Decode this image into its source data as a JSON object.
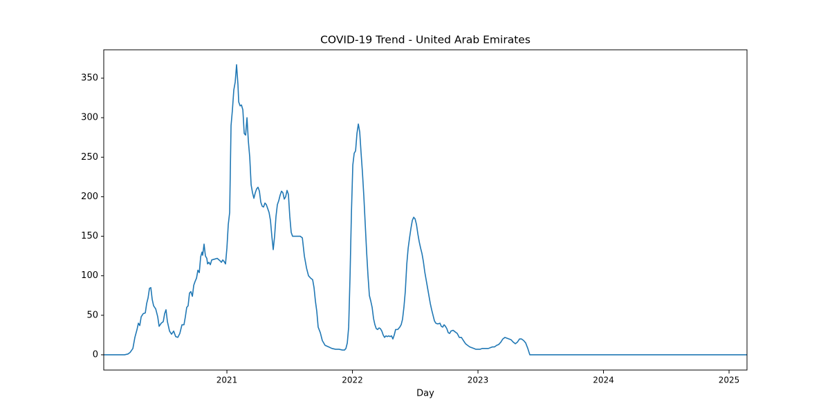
{
  "chart_data": {
    "type": "line",
    "title": "COVID-19 Trend - United Arab Emirates",
    "xlabel": "Day",
    "x": [
      2020.019,
      2020.185,
      2020.212,
      2020.229,
      2020.251,
      2020.267,
      2020.284,
      2020.295,
      2020.306,
      2020.317,
      2020.333,
      2020.35,
      2020.361,
      2020.372,
      2020.383,
      2020.394,
      2020.405,
      2020.416,
      2020.433,
      2020.449,
      2020.46,
      2020.477,
      2020.493,
      2020.504,
      2020.515,
      2020.526,
      2020.543,
      2020.559,
      2020.576,
      2020.592,
      2020.609,
      2020.625,
      2020.642,
      2020.658,
      2020.669,
      2020.68,
      2020.691,
      2020.702,
      2020.713,
      2020.725,
      2020.736,
      2020.747,
      2020.758,
      2020.769,
      2020.78,
      2020.791,
      2020.802,
      2020.807,
      2020.818,
      2020.829,
      2020.84,
      2020.846,
      2020.857,
      2020.868,
      2020.879,
      2020.901,
      2020.923,
      2020.945,
      2020.956,
      2020.967,
      2020.978,
      2020.989,
      2021.0,
      2021.011,
      2021.022,
      2021.033,
      2021.044,
      2021.055,
      2021.066,
      2021.077,
      2021.088,
      2021.094,
      2021.105,
      2021.116,
      2021.127,
      2021.138,
      2021.149,
      2021.16,
      2021.171,
      2021.182,
      2021.193,
      2021.204,
      2021.215,
      2021.226,
      2021.237,
      2021.248,
      2021.259,
      2021.27,
      2021.281,
      2021.292,
      2021.303,
      2021.314,
      2021.325,
      2021.336,
      2021.347,
      2021.358,
      2021.369,
      2021.38,
      2021.391,
      2021.402,
      2021.413,
      2021.424,
      2021.435,
      2021.446,
      2021.457,
      2021.468,
      2021.479,
      2021.49,
      2021.501,
      2021.512,
      2021.523,
      2021.54,
      2021.562,
      2021.584,
      2021.601,
      2021.617,
      2021.634,
      2021.65,
      2021.667,
      2021.683,
      2021.694,
      2021.705,
      2021.716,
      2021.727,
      2021.744,
      2021.76,
      2021.782,
      2021.81,
      2021.837,
      2021.865,
      2021.893,
      2021.92,
      2021.937,
      2021.948,
      2021.959,
      2021.97,
      2021.981,
      2021.992,
      2022.003,
      2022.014,
      2022.025,
      2022.036,
      2022.047,
      2022.058,
      2022.069,
      2022.08,
      2022.091,
      2022.102,
      2022.113,
      2022.124,
      2022.135,
      2022.146,
      2022.157,
      2022.168,
      2022.179,
      2022.19,
      2022.201,
      2022.212,
      2022.223,
      2022.234,
      2022.245,
      2022.256,
      2022.267,
      2022.278,
      2022.289,
      2022.3,
      2022.311,
      2022.322,
      2022.333,
      2022.344,
      2022.361,
      2022.377,
      2022.388,
      2022.399,
      2022.41,
      2022.421,
      2022.433,
      2022.444,
      2022.455,
      2022.466,
      2022.477,
      2022.488,
      2022.499,
      2022.51,
      2022.521,
      2022.532,
      2022.543,
      2022.554,
      2022.565,
      2022.576,
      2022.587,
      2022.598,
      2022.609,
      2022.62,
      2022.631,
      2022.642,
      2022.653,
      2022.664,
      2022.68,
      2022.697,
      2022.708,
      2022.719,
      2022.73,
      2022.741,
      2022.752,
      2022.763,
      2022.774,
      2022.785,
      2022.802,
      2022.818,
      2022.835,
      2022.851,
      2022.868,
      2022.884,
      2022.901,
      2022.917,
      2022.934,
      2022.95,
      2022.967,
      2022.983,
      2023.0,
      2023.017,
      2023.033,
      2023.05,
      2023.066,
      2023.083,
      2023.099,
      2023.116,
      2023.132,
      2023.149,
      2023.165,
      2023.182,
      2023.198,
      2023.215,
      2023.231,
      2023.248,
      2023.264,
      2023.281,
      2023.298,
      2023.314,
      2023.331,
      2023.347,
      2023.364,
      2023.38,
      2023.397,
      2023.413,
      2025.143
    ],
    "series": [
      {
        "color": "#1f77b4",
        "values": [
          0,
          0,
          1,
          3,
          8,
          22,
          32,
          40,
          37,
          48,
          52,
          53,
          65,
          72,
          84,
          85,
          70,
          62,
          58,
          48,
          36,
          40,
          42,
          52,
          57,
          42,
          30,
          26,
          30,
          23,
          22,
          27,
          38,
          38,
          48,
          60,
          62,
          78,
          80,
          74,
          88,
          93,
          97,
          107,
          104,
          124,
          130,
          126,
          140,
          125,
          122,
          115,
          117,
          114,
          120,
          121,
          122,
          119,
          117,
          120,
          118,
          115,
          135,
          165,
          180,
          290,
          310,
          335,
          345,
          367,
          342,
          320,
          315,
          316,
          310,
          280,
          278,
          300,
          270,
          250,
          215,
          205,
          198,
          205,
          210,
          212,
          207,
          193,
          188,
          187,
          192,
          190,
          185,
          180,
          170,
          150,
          133,
          150,
          175,
          190,
          195,
          202,
          207,
          205,
          197,
          200,
          208,
          203,
          175,
          155,
          150,
          150,
          150,
          150,
          148,
          125,
          110,
          100,
          97,
          95,
          85,
          68,
          55,
          35,
          28,
          18,
          12,
          10,
          8,
          7,
          7,
          6,
          6,
          8,
          15,
          35,
          100,
          180,
          240,
          255,
          258,
          280,
          292,
          282,
          255,
          230,
          200,
          165,
          130,
          100,
          75,
          68,
          60,
          46,
          38,
          33,
          32,
          34,
          33,
          30,
          25,
          22,
          24,
          23,
          24,
          23,
          24,
          20,
          25,
          32,
          32,
          35,
          38,
          45,
          60,
          80,
          115,
          135,
          148,
          160,
          170,
          174,
          172,
          165,
          153,
          143,
          135,
          128,
          118,
          105,
          95,
          85,
          75,
          65,
          57,
          50,
          43,
          40,
          39,
          40,
          36,
          35,
          38,
          36,
          33,
          28,
          27,
          30,
          31,
          29,
          27,
          22,
          22,
          18,
          14,
          12,
          10,
          9,
          8,
          7,
          7,
          7,
          8,
          8,
          8,
          8,
          9,
          10,
          10,
          12,
          13,
          16,
          20,
          22,
          21,
          20,
          19,
          16,
          14,
          16,
          20,
          20,
          18,
          15,
          8,
          0,
          0
        ]
      }
    ],
    "xlim": [
      2020.019,
      2025.143
    ],
    "xticks": [
      2021,
      2022,
      2023,
      2024,
      2025
    ],
    "ylim": [
      -19.3,
      385.9
    ],
    "yticks": [
      0,
      50,
      100,
      150,
      200,
      250,
      300,
      350
    ]
  }
}
